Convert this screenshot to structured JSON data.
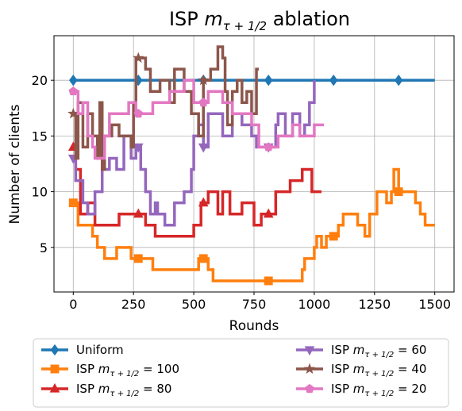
{
  "chart_data": {
    "type": "line",
    "title_prefix": "ISP",
    "title_var": "m",
    "title_sub": "τ + 1/2",
    "title_suffix": "ablation",
    "xlabel": "Rounds",
    "ylabel": "Number of clients",
    "xlim": [
      -80,
      1580
    ],
    "ylim": [
      1,
      24
    ],
    "xticks": [
      0,
      250,
      500,
      750,
      1000,
      1250,
      1500
    ],
    "yticks": [
      5,
      10,
      15,
      20
    ],
    "grid": true,
    "legend_placement": "below",
    "series": [
      {
        "name_plain": "Uniform",
        "color": "#1f77b4",
        "marker": "diamond",
        "markers_x": [
          0,
          270,
          540,
          810,
          1080,
          1350
        ],
        "points": [
          [
            0,
            20
          ],
          [
            1500,
            20
          ]
        ]
      },
      {
        "name_prefix": "ISP",
        "name_var": "m",
        "name_sub": "τ + 1/2",
        "name_value": "= 100",
        "color": "#ff7f0e",
        "marker": "square",
        "markers_x": [
          0,
          270,
          540,
          810,
          1080,
          1350
        ],
        "points": [
          [
            0,
            9
          ],
          [
            20,
            9
          ],
          [
            20,
            7
          ],
          [
            80,
            7
          ],
          [
            80,
            6
          ],
          [
            100,
            6
          ],
          [
            100,
            5
          ],
          [
            130,
            5
          ],
          [
            130,
            4
          ],
          [
            180,
            4
          ],
          [
            180,
            5
          ],
          [
            240,
            5
          ],
          [
            240,
            4
          ],
          [
            330,
            4
          ],
          [
            330,
            3
          ],
          [
            520,
            3
          ],
          [
            520,
            4
          ],
          [
            560,
            4
          ],
          [
            560,
            3
          ],
          [
            580,
            3
          ],
          [
            580,
            2
          ],
          [
            950,
            2
          ],
          [
            950,
            3
          ],
          [
            960,
            3
          ],
          [
            960,
            4
          ],
          [
            1000,
            4
          ],
          [
            1000,
            5
          ],
          [
            1010,
            5
          ],
          [
            1010,
            6
          ],
          [
            1030,
            6
          ],
          [
            1030,
            5
          ],
          [
            1050,
            5
          ],
          [
            1050,
            6
          ],
          [
            1100,
            6
          ],
          [
            1100,
            7
          ],
          [
            1120,
            7
          ],
          [
            1120,
            8
          ],
          [
            1180,
            8
          ],
          [
            1180,
            7
          ],
          [
            1210,
            7
          ],
          [
            1210,
            6
          ],
          [
            1230,
            6
          ],
          [
            1230,
            8
          ],
          [
            1260,
            8
          ],
          [
            1260,
            10
          ],
          [
            1300,
            10
          ],
          [
            1300,
            9
          ],
          [
            1320,
            9
          ],
          [
            1320,
            10
          ],
          [
            1330,
            10
          ],
          [
            1330,
            12
          ],
          [
            1350,
            12
          ],
          [
            1350,
            10
          ],
          [
            1420,
            10
          ],
          [
            1420,
            9
          ],
          [
            1440,
            9
          ],
          [
            1440,
            8
          ],
          [
            1460,
            8
          ],
          [
            1460,
            7
          ],
          [
            1500,
            7
          ]
        ]
      },
      {
        "name_prefix": "ISP",
        "name_var": "m",
        "name_sub": "τ + 1/2",
        "name_value": "= 80",
        "color": "#d62728",
        "marker": "triangle-up",
        "markers_x": [
          0,
          270,
          540,
          810
        ],
        "points": [
          [
            0,
            14
          ],
          [
            10,
            14
          ],
          [
            10,
            12
          ],
          [
            30,
            12
          ],
          [
            30,
            8
          ],
          [
            60,
            8
          ],
          [
            60,
            9
          ],
          [
            90,
            9
          ],
          [
            90,
            7
          ],
          [
            190,
            7
          ],
          [
            190,
            8
          ],
          [
            300,
            8
          ],
          [
            300,
            7
          ],
          [
            340,
            7
          ],
          [
            340,
            6
          ],
          [
            500,
            6
          ],
          [
            500,
            7
          ],
          [
            530,
            7
          ],
          [
            530,
            9
          ],
          [
            560,
            9
          ],
          [
            560,
            10
          ],
          [
            600,
            10
          ],
          [
            600,
            8
          ],
          [
            620,
            8
          ],
          [
            620,
            10
          ],
          [
            650,
            10
          ],
          [
            650,
            8
          ],
          [
            700,
            8
          ],
          [
            700,
            9
          ],
          [
            750,
            9
          ],
          [
            750,
            7
          ],
          [
            780,
            7
          ],
          [
            780,
            8
          ],
          [
            840,
            8
          ],
          [
            840,
            10
          ],
          [
            900,
            10
          ],
          [
            900,
            11
          ],
          [
            950,
            11
          ],
          [
            950,
            12
          ],
          [
            990,
            12
          ],
          [
            990,
            10
          ],
          [
            1030,
            10
          ]
        ]
      },
      {
        "name_prefix": "ISP",
        "name_var": "m",
        "name_sub": "τ + 1/2",
        "name_value": "= 60",
        "color": "#9467bd",
        "marker": "triangle-down",
        "markers_x": [
          0,
          270,
          540,
          810
        ],
        "points": [
          [
            0,
            13
          ],
          [
            10,
            13
          ],
          [
            10,
            11
          ],
          [
            40,
            11
          ],
          [
            40,
            9
          ],
          [
            60,
            9
          ],
          [
            60,
            8
          ],
          [
            90,
            8
          ],
          [
            90,
            10
          ],
          [
            120,
            10
          ],
          [
            120,
            12
          ],
          [
            150,
            12
          ],
          [
            150,
            13
          ],
          [
            180,
            13
          ],
          [
            180,
            12
          ],
          [
            210,
            12
          ],
          [
            210,
            15
          ],
          [
            240,
            15
          ],
          [
            240,
            13
          ],
          [
            260,
            13
          ],
          [
            260,
            14
          ],
          [
            280,
            14
          ],
          [
            280,
            12
          ],
          [
            300,
            12
          ],
          [
            300,
            10
          ],
          [
            320,
            10
          ],
          [
            320,
            8
          ],
          [
            340,
            8
          ],
          [
            340,
            9
          ],
          [
            350,
            9
          ],
          [
            350,
            8
          ],
          [
            380,
            8
          ],
          [
            380,
            7
          ],
          [
            420,
            7
          ],
          [
            420,
            9
          ],
          [
            460,
            9
          ],
          [
            460,
            10
          ],
          [
            490,
            10
          ],
          [
            490,
            12
          ],
          [
            500,
            12
          ],
          [
            500,
            15
          ],
          [
            520,
            15
          ],
          [
            520,
            16
          ],
          [
            540,
            16
          ],
          [
            540,
            14
          ],
          [
            560,
            14
          ],
          [
            560,
            17
          ],
          [
            620,
            17
          ],
          [
            620,
            15
          ],
          [
            660,
            15
          ],
          [
            660,
            17
          ],
          [
            700,
            17
          ],
          [
            700,
            16
          ],
          [
            740,
            16
          ],
          [
            740,
            15
          ],
          [
            760,
            15
          ],
          [
            760,
            14
          ],
          [
            840,
            14
          ],
          [
            840,
            16
          ],
          [
            850,
            16
          ],
          [
            850,
            17
          ],
          [
            880,
            17
          ],
          [
            880,
            15
          ],
          [
            910,
            15
          ],
          [
            910,
            17
          ],
          [
            940,
            17
          ],
          [
            940,
            15
          ],
          [
            960,
            15
          ],
          [
            960,
            16
          ],
          [
            980,
            16
          ],
          [
            980,
            18
          ],
          [
            1000,
            18
          ],
          [
            1000,
            20
          ]
        ]
      },
      {
        "name_prefix": "ISP",
        "name_var": "m",
        "name_sub": "τ + 1/2",
        "name_value": "= 40",
        "color": "#8c564b",
        "marker": "star",
        "markers_x": [
          0,
          270,
          540
        ],
        "points": [
          [
            0,
            17
          ],
          [
            10,
            17
          ],
          [
            10,
            13
          ],
          [
            20,
            13
          ],
          [
            20,
            18
          ],
          [
            40,
            18
          ],
          [
            40,
            14
          ],
          [
            60,
            14
          ],
          [
            60,
            17
          ],
          [
            80,
            17
          ],
          [
            80,
            15
          ],
          [
            100,
            15
          ],
          [
            100,
            13
          ],
          [
            110,
            13
          ],
          [
            110,
            18
          ],
          [
            120,
            18
          ],
          [
            120,
            12
          ],
          [
            130,
            12
          ],
          [
            130,
            15
          ],
          [
            160,
            15
          ],
          [
            160,
            16
          ],
          [
            190,
            16
          ],
          [
            190,
            15
          ],
          [
            240,
            15
          ],
          [
            240,
            14
          ],
          [
            250,
            14
          ],
          [
            250,
            18
          ],
          [
            260,
            18
          ],
          [
            260,
            22
          ],
          [
            300,
            22
          ],
          [
            300,
            21
          ],
          [
            320,
            21
          ],
          [
            320,
            19
          ],
          [
            360,
            19
          ],
          [
            360,
            20
          ],
          [
            400,
            20
          ],
          [
            400,
            18
          ],
          [
            420,
            18
          ],
          [
            420,
            21
          ],
          [
            460,
            21
          ],
          [
            460,
            19
          ],
          [
            490,
            19
          ],
          [
            490,
            17
          ],
          [
            520,
            17
          ],
          [
            520,
            15
          ],
          [
            540,
            15
          ],
          [
            540,
            20
          ],
          [
            570,
            20
          ],
          [
            570,
            21
          ],
          [
            600,
            21
          ],
          [
            600,
            23
          ],
          [
            620,
            23
          ],
          [
            620,
            22
          ],
          [
            630,
            22
          ],
          [
            630,
            19
          ],
          [
            640,
            19
          ],
          [
            640,
            16
          ],
          [
            660,
            16
          ],
          [
            660,
            19
          ],
          [
            680,
            19
          ],
          [
            680,
            20
          ],
          [
            700,
            20
          ],
          [
            700,
            18
          ],
          [
            720,
            18
          ],
          [
            720,
            19
          ],
          [
            740,
            19
          ],
          [
            740,
            17
          ],
          [
            760,
            17
          ],
          [
            760,
            21
          ],
          [
            770,
            21
          ]
        ]
      },
      {
        "name_prefix": "ISP",
        "name_var": "m",
        "name_sub": "τ + 1/2",
        "name_value": "= 20",
        "color": "#e377c2",
        "marker": "pentagon",
        "markers_x": [
          0,
          270,
          540,
          810
        ],
        "points": [
          [
            0,
            19
          ],
          [
            20,
            19
          ],
          [
            20,
            17
          ],
          [
            40,
            17
          ],
          [
            40,
            18
          ],
          [
            60,
            18
          ],
          [
            60,
            15
          ],
          [
            80,
            15
          ],
          [
            80,
            14
          ],
          [
            90,
            14
          ],
          [
            90,
            13
          ],
          [
            130,
            13
          ],
          [
            130,
            15
          ],
          [
            150,
            15
          ],
          [
            150,
            17
          ],
          [
            230,
            17
          ],
          [
            230,
            18
          ],
          [
            260,
            18
          ],
          [
            260,
            17
          ],
          [
            330,
            17
          ],
          [
            330,
            18
          ],
          [
            400,
            18
          ],
          [
            400,
            19
          ],
          [
            460,
            19
          ],
          [
            460,
            20
          ],
          [
            500,
            20
          ],
          [
            500,
            18
          ],
          [
            560,
            18
          ],
          [
            560,
            19
          ],
          [
            620,
            19
          ],
          [
            620,
            18
          ],
          [
            660,
            18
          ],
          [
            660,
            17
          ],
          [
            740,
            17
          ],
          [
            740,
            16
          ],
          [
            770,
            16
          ],
          [
            770,
            14
          ],
          [
            850,
            14
          ],
          [
            850,
            15
          ],
          [
            910,
            15
          ],
          [
            910,
            16
          ],
          [
            940,
            16
          ],
          [
            940,
            15
          ],
          [
            1000,
            15
          ],
          [
            1000,
            16
          ],
          [
            1040,
            16
          ]
        ]
      }
    ]
  }
}
